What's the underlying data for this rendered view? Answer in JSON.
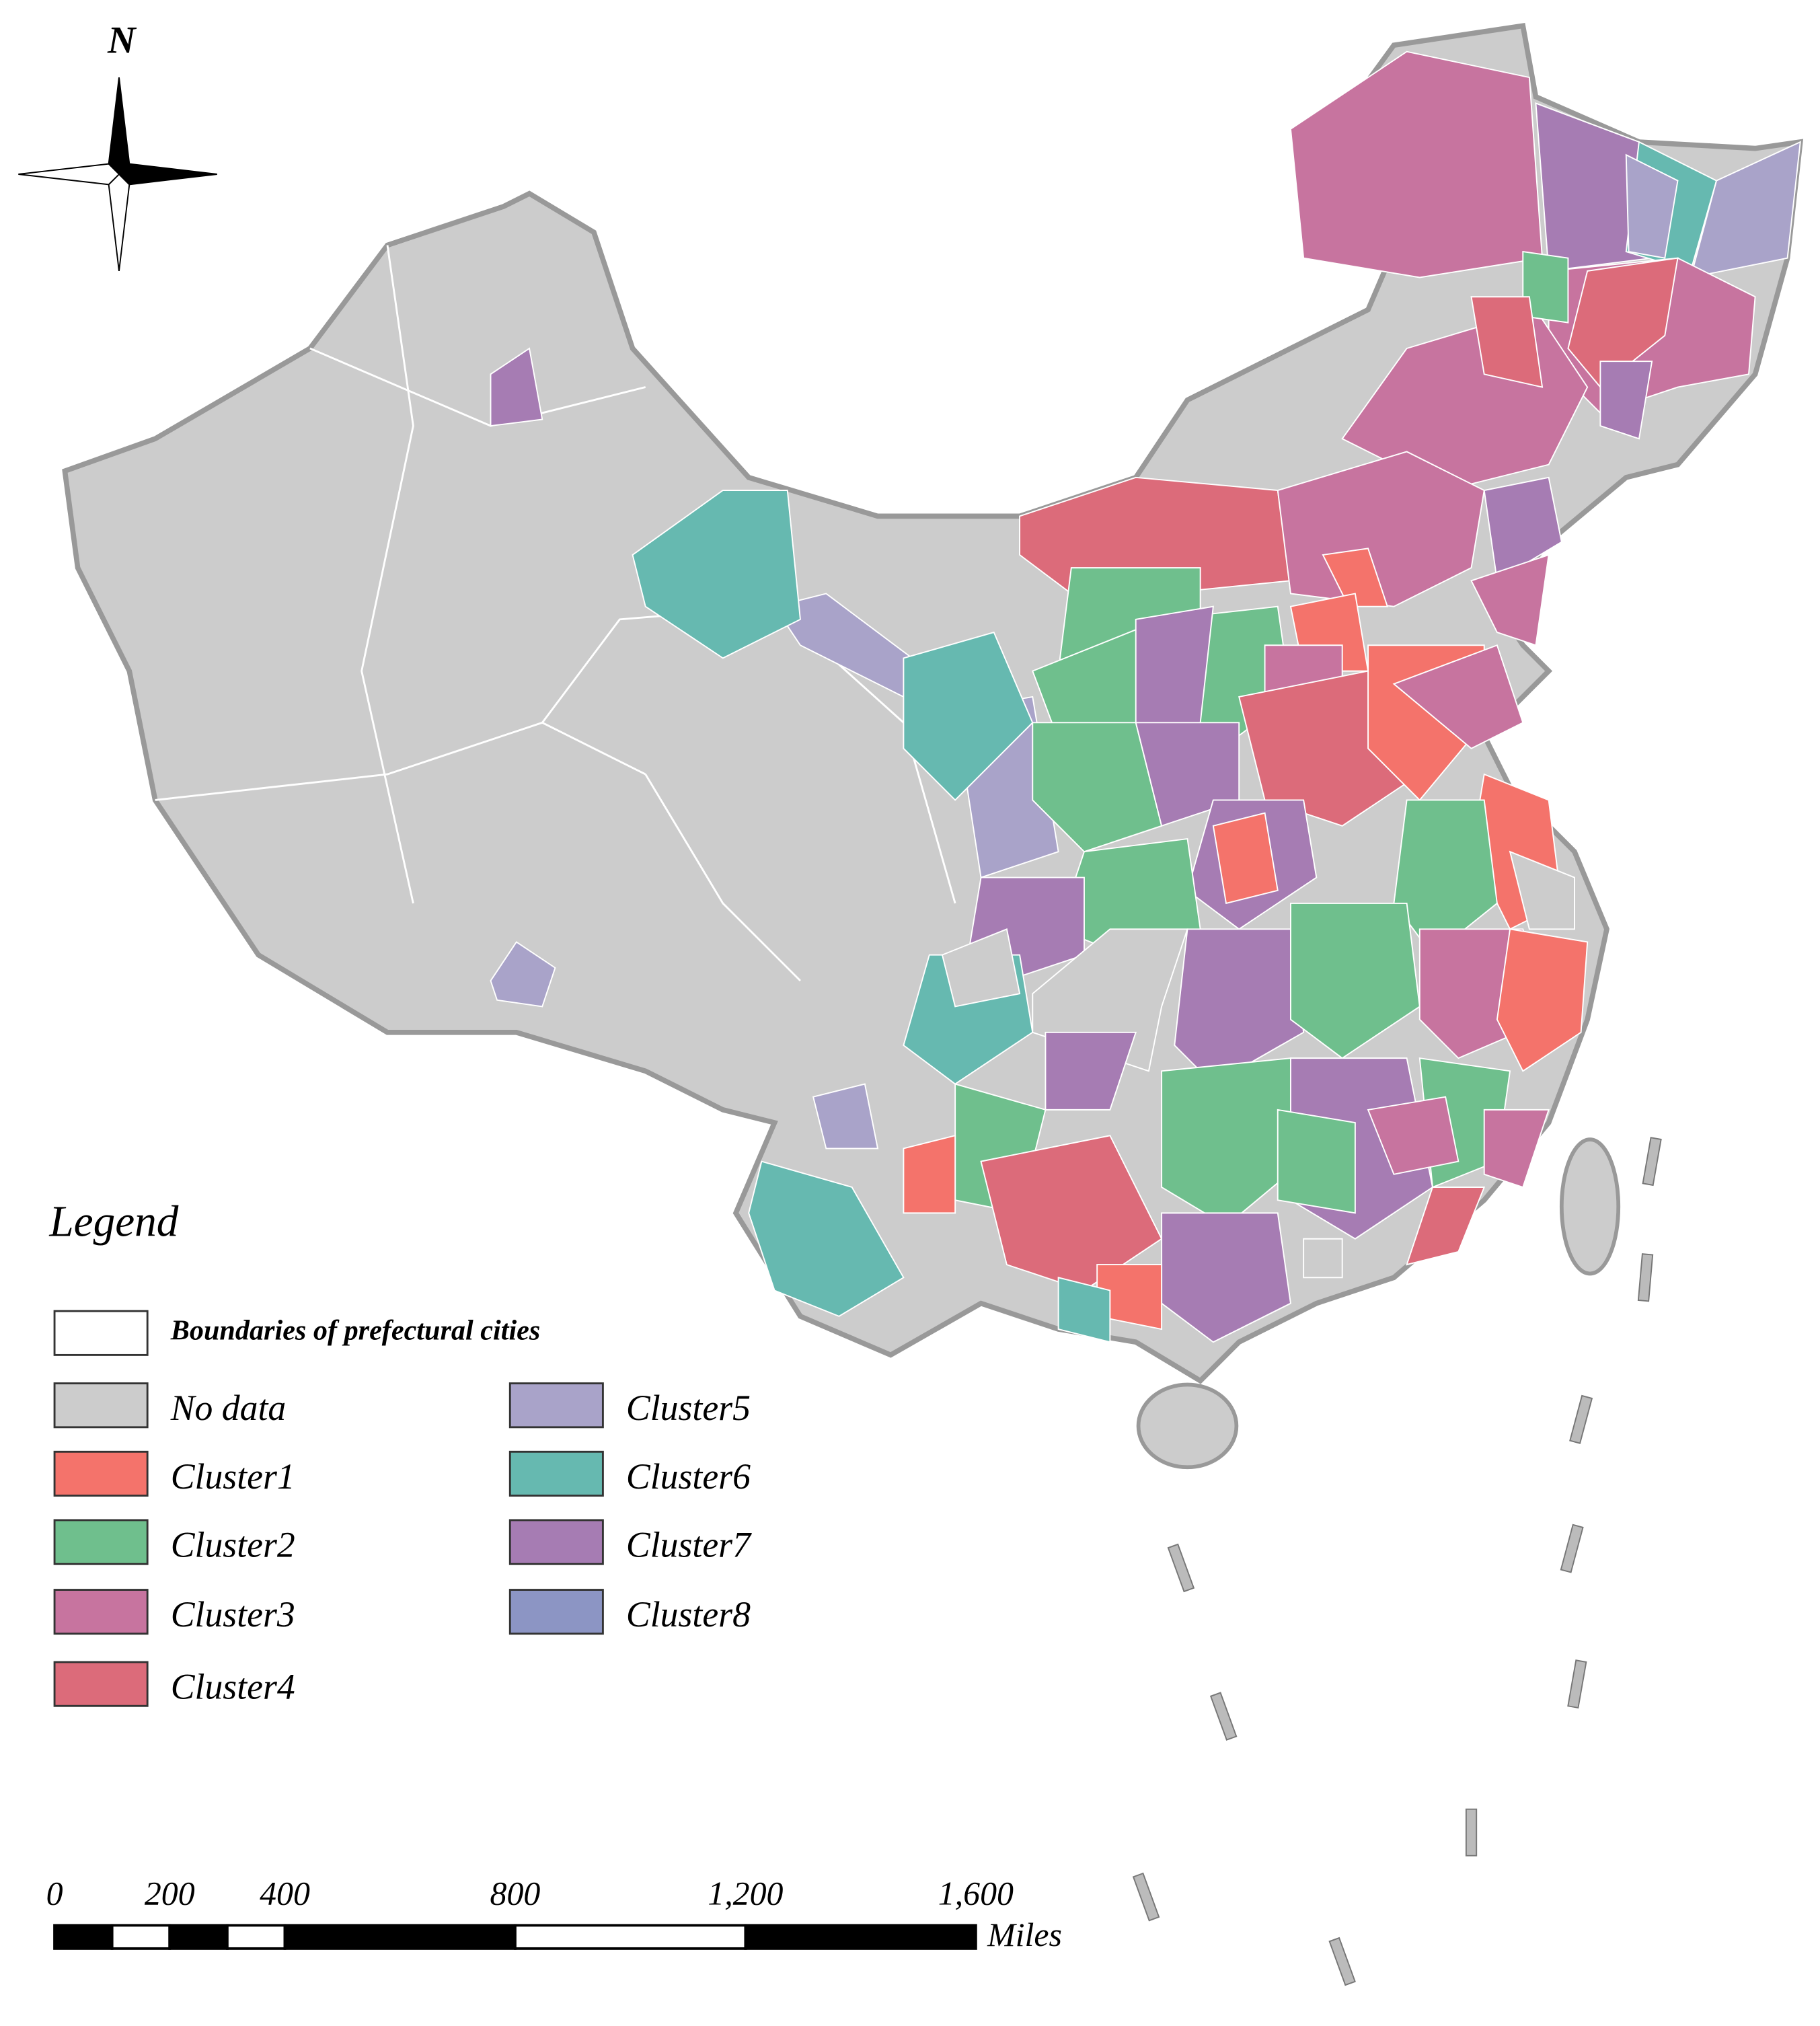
{
  "map": {
    "north_label": "N",
    "legend": {
      "title": "Legend",
      "items": [
        {
          "label": "Boundaries of prefectural cities",
          "color": "#ffffff"
        },
        {
          "label": "No data",
          "color": "#cccccc"
        },
        {
          "label": "Cluster1",
          "color": "#f4736b"
        },
        {
          "label": "Cluster2",
          "color": "#6fbf8d"
        },
        {
          "label": "Cluster3",
          "color": "#c7749f"
        },
        {
          "label": "Cluster4",
          "color": "#dc6b7a"
        },
        {
          "label": "Cluster5",
          "color": "#a9a3c9"
        },
        {
          "label": "Cluster6",
          "color": "#66b9b0"
        },
        {
          "label": "Cluster7",
          "color": "#a67cb3"
        },
        {
          "label": "Cluster8",
          "color": "#8c95c4"
        }
      ]
    },
    "scale_bar": {
      "labels": [
        "0",
        "200",
        "400",
        "800",
        "1,200",
        "1,600"
      ],
      "unit": "Miles"
    }
  }
}
